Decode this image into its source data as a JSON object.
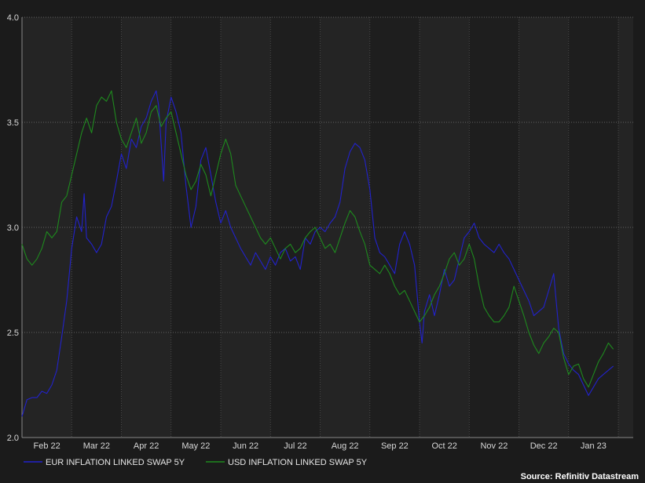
{
  "chart_data": {
    "type": "line",
    "source": "Source: Refinitiv Datastream",
    "ylim": [
      2.0,
      4.0
    ],
    "yticks": [
      "2.0",
      "2.5",
      "3.0",
      "3.5",
      "4.0"
    ],
    "grid": true,
    "legend_position": "bottom-left",
    "months": [
      "Feb 22",
      "Mar 22",
      "Apr 22",
      "May 22",
      "Jun 22",
      "Jul 22",
      "Aug 22",
      "Sep 22",
      "Oct 22",
      "Nov 22",
      "Dec 22",
      "Jan 23"
    ],
    "x_index_range": [
      0,
      12.3
    ],
    "series": [
      {
        "name": "EUR INFLATION LINKED SWAP 5Y",
        "color": "#2222cc",
        "points": [
          [
            0.0,
            2.1
          ],
          [
            0.1,
            2.18
          ],
          [
            0.2,
            2.19
          ],
          [
            0.3,
            2.19
          ],
          [
            0.4,
            2.22
          ],
          [
            0.5,
            2.21
          ],
          [
            0.6,
            2.25
          ],
          [
            0.7,
            2.32
          ],
          [
            0.8,
            2.48
          ],
          [
            0.9,
            2.65
          ],
          [
            1.0,
            2.9
          ],
          [
            1.1,
            3.05
          ],
          [
            1.2,
            2.98
          ],
          [
            1.25,
            3.16
          ],
          [
            1.3,
            2.95
          ],
          [
            1.4,
            2.92
          ],
          [
            1.5,
            2.88
          ],
          [
            1.6,
            2.92
          ],
          [
            1.7,
            3.05
          ],
          [
            1.8,
            3.1
          ],
          [
            1.9,
            3.22
          ],
          [
            2.0,
            3.35
          ],
          [
            2.1,
            3.28
          ],
          [
            2.2,
            3.42
          ],
          [
            2.3,
            3.38
          ],
          [
            2.4,
            3.48
          ],
          [
            2.5,
            3.52
          ],
          [
            2.6,
            3.6
          ],
          [
            2.7,
            3.65
          ],
          [
            2.75,
            3.58
          ],
          [
            2.8,
            3.4
          ],
          [
            2.85,
            3.22
          ],
          [
            2.9,
            3.5
          ],
          [
            3.0,
            3.62
          ],
          [
            3.1,
            3.55
          ],
          [
            3.2,
            3.45
          ],
          [
            3.3,
            3.2
          ],
          [
            3.4,
            3.0
          ],
          [
            3.5,
            3.1
          ],
          [
            3.6,
            3.32
          ],
          [
            3.7,
            3.38
          ],
          [
            3.8,
            3.25
          ],
          [
            3.9,
            3.12
          ],
          [
            4.0,
            3.02
          ],
          [
            4.1,
            3.08
          ],
          [
            4.2,
            3.0
          ],
          [
            4.3,
            2.95
          ],
          [
            4.4,
            2.9
          ],
          [
            4.5,
            2.86
          ],
          [
            4.6,
            2.82
          ],
          [
            4.7,
            2.88
          ],
          [
            4.8,
            2.84
          ],
          [
            4.9,
            2.8
          ],
          [
            5.0,
            2.86
          ],
          [
            5.1,
            2.82
          ],
          [
            5.2,
            2.88
          ],
          [
            5.3,
            2.9
          ],
          [
            5.4,
            2.84
          ],
          [
            5.5,
            2.86
          ],
          [
            5.6,
            2.8
          ],
          [
            5.7,
            2.95
          ],
          [
            5.8,
            2.92
          ],
          [
            5.9,
            2.98
          ],
          [
            6.0,
            3.0
          ],
          [
            6.1,
            2.98
          ],
          [
            6.2,
            3.02
          ],
          [
            6.3,
            3.05
          ],
          [
            6.4,
            3.12
          ],
          [
            6.5,
            3.28
          ],
          [
            6.6,
            3.36
          ],
          [
            6.7,
            3.4
          ],
          [
            6.8,
            3.38
          ],
          [
            6.9,
            3.32
          ],
          [
            7.0,
            3.18
          ],
          [
            7.1,
            2.95
          ],
          [
            7.2,
            2.88
          ],
          [
            7.3,
            2.86
          ],
          [
            7.4,
            2.82
          ],
          [
            7.5,
            2.78
          ],
          [
            7.6,
            2.92
          ],
          [
            7.7,
            2.98
          ],
          [
            7.8,
            2.92
          ],
          [
            7.9,
            2.82
          ],
          [
            8.0,
            2.55
          ],
          [
            8.05,
            2.45
          ],
          [
            8.1,
            2.6
          ],
          [
            8.2,
            2.68
          ],
          [
            8.3,
            2.58
          ],
          [
            8.4,
            2.68
          ],
          [
            8.5,
            2.8
          ],
          [
            8.6,
            2.72
          ],
          [
            8.7,
            2.75
          ],
          [
            8.8,
            2.85
          ],
          [
            8.9,
            2.95
          ],
          [
            9.0,
            2.98
          ],
          [
            9.1,
            3.02
          ],
          [
            9.2,
            2.95
          ],
          [
            9.3,
            2.92
          ],
          [
            9.4,
            2.9
          ],
          [
            9.5,
            2.88
          ],
          [
            9.6,
            2.92
          ],
          [
            9.7,
            2.88
          ],
          [
            9.8,
            2.85
          ],
          [
            9.9,
            2.8
          ],
          [
            10.0,
            2.75
          ],
          [
            10.1,
            2.7
          ],
          [
            10.2,
            2.65
          ],
          [
            10.3,
            2.58
          ],
          [
            10.4,
            2.6
          ],
          [
            10.5,
            2.62
          ],
          [
            10.6,
            2.7
          ],
          [
            10.7,
            2.78
          ],
          [
            10.8,
            2.52
          ],
          [
            10.9,
            2.4
          ],
          [
            11.0,
            2.35
          ],
          [
            11.1,
            2.32
          ],
          [
            11.2,
            2.3
          ],
          [
            11.3,
            2.25
          ],
          [
            11.4,
            2.2
          ],
          [
            11.5,
            2.24
          ],
          [
            11.6,
            2.28
          ],
          [
            11.7,
            2.3
          ],
          [
            11.8,
            2.32
          ],
          [
            11.9,
            2.34
          ]
        ]
      },
      {
        "name": "USD INFLATION LINKED SWAP 5Y",
        "color": "#1e8a1e",
        "points": [
          [
            0.0,
            2.92
          ],
          [
            0.1,
            2.85
          ],
          [
            0.2,
            2.82
          ],
          [
            0.3,
            2.85
          ],
          [
            0.4,
            2.9
          ],
          [
            0.5,
            2.98
          ],
          [
            0.6,
            2.95
          ],
          [
            0.7,
            2.98
          ],
          [
            0.8,
            3.12
          ],
          [
            0.9,
            3.15
          ],
          [
            1.0,
            3.25
          ],
          [
            1.1,
            3.35
          ],
          [
            1.2,
            3.45
          ],
          [
            1.3,
            3.52
          ],
          [
            1.4,
            3.45
          ],
          [
            1.5,
            3.58
          ],
          [
            1.6,
            3.62
          ],
          [
            1.7,
            3.6
          ],
          [
            1.8,
            3.65
          ],
          [
            1.9,
            3.5
          ],
          [
            2.0,
            3.42
          ],
          [
            2.1,
            3.38
          ],
          [
            2.2,
            3.45
          ],
          [
            2.3,
            3.52
          ],
          [
            2.4,
            3.4
          ],
          [
            2.5,
            3.45
          ],
          [
            2.6,
            3.55
          ],
          [
            2.7,
            3.58
          ],
          [
            2.8,
            3.48
          ],
          [
            2.9,
            3.52
          ],
          [
            3.0,
            3.55
          ],
          [
            3.1,
            3.45
          ],
          [
            3.2,
            3.35
          ],
          [
            3.3,
            3.25
          ],
          [
            3.4,
            3.18
          ],
          [
            3.5,
            3.22
          ],
          [
            3.6,
            3.3
          ],
          [
            3.7,
            3.25
          ],
          [
            3.8,
            3.15
          ],
          [
            3.9,
            3.25
          ],
          [
            4.0,
            3.35
          ],
          [
            4.1,
            3.42
          ],
          [
            4.2,
            3.35
          ],
          [
            4.3,
            3.2
          ],
          [
            4.4,
            3.15
          ],
          [
            4.5,
            3.1
          ],
          [
            4.6,
            3.05
          ],
          [
            4.7,
            3.0
          ],
          [
            4.8,
            2.95
          ],
          [
            4.9,
            2.92
          ],
          [
            5.0,
            2.95
          ],
          [
            5.1,
            2.9
          ],
          [
            5.2,
            2.85
          ],
          [
            5.3,
            2.9
          ],
          [
            5.4,
            2.92
          ],
          [
            5.5,
            2.88
          ],
          [
            5.6,
            2.9
          ],
          [
            5.7,
            2.95
          ],
          [
            5.8,
            2.98
          ],
          [
            5.9,
            3.0
          ],
          [
            6.0,
            2.95
          ],
          [
            6.1,
            2.9
          ],
          [
            6.2,
            2.92
          ],
          [
            6.3,
            2.88
          ],
          [
            6.4,
            2.95
          ],
          [
            6.5,
            3.02
          ],
          [
            6.6,
            3.08
          ],
          [
            6.7,
            3.05
          ],
          [
            6.8,
            2.98
          ],
          [
            6.9,
            2.92
          ],
          [
            7.0,
            2.82
          ],
          [
            7.1,
            2.8
          ],
          [
            7.2,
            2.78
          ],
          [
            7.3,
            2.82
          ],
          [
            7.4,
            2.78
          ],
          [
            7.5,
            2.72
          ],
          [
            7.6,
            2.68
          ],
          [
            7.7,
            2.7
          ],
          [
            7.8,
            2.65
          ],
          [
            7.9,
            2.6
          ],
          [
            8.0,
            2.55
          ],
          [
            8.1,
            2.58
          ],
          [
            8.2,
            2.62
          ],
          [
            8.3,
            2.68
          ],
          [
            8.4,
            2.72
          ],
          [
            8.5,
            2.78
          ],
          [
            8.6,
            2.85
          ],
          [
            8.7,
            2.88
          ],
          [
            8.8,
            2.82
          ],
          [
            8.9,
            2.85
          ],
          [
            9.0,
            2.92
          ],
          [
            9.1,
            2.85
          ],
          [
            9.2,
            2.72
          ],
          [
            9.3,
            2.62
          ],
          [
            9.4,
            2.58
          ],
          [
            9.5,
            2.55
          ],
          [
            9.6,
            2.55
          ],
          [
            9.7,
            2.58
          ],
          [
            9.8,
            2.62
          ],
          [
            9.9,
            2.72
          ],
          [
            10.0,
            2.65
          ],
          [
            10.1,
            2.58
          ],
          [
            10.2,
            2.5
          ],
          [
            10.3,
            2.44
          ],
          [
            10.4,
            2.4
          ],
          [
            10.5,
            2.45
          ],
          [
            10.6,
            2.48
          ],
          [
            10.7,
            2.52
          ],
          [
            10.8,
            2.5
          ],
          [
            10.9,
            2.38
          ],
          [
            11.0,
            2.3
          ],
          [
            11.1,
            2.34
          ],
          [
            11.2,
            2.35
          ],
          [
            11.3,
            2.28
          ],
          [
            11.4,
            2.24
          ],
          [
            11.5,
            2.3
          ],
          [
            11.6,
            2.36
          ],
          [
            11.7,
            2.4
          ],
          [
            11.8,
            2.45
          ],
          [
            11.9,
            2.42
          ]
        ]
      }
    ]
  }
}
